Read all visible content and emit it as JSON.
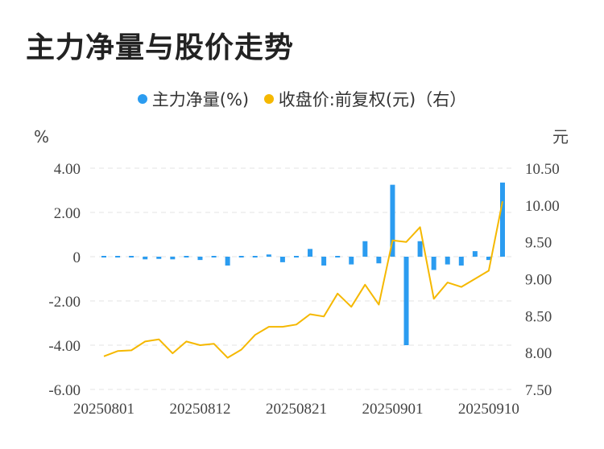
{
  "title": "主力净量与股价走势",
  "legend": {
    "items": [
      {
        "label": "主力净量(%)",
        "color": "#2b9cf0"
      },
      {
        "label": "收盘价:前复权(元)（右）",
        "color": "#f5b800"
      }
    ]
  },
  "chart_data": {
    "type": "bar+line",
    "title": "主力净量与股价走势",
    "left_axis": {
      "unit": "%",
      "min": -6,
      "max": 4,
      "ticks": [
        "4.00",
        "2.00",
        "0",
        "-2.00",
        "-4.00",
        "-6.00"
      ]
    },
    "right_axis": {
      "unit": "元",
      "min": 7.5,
      "max": 10.5,
      "ticks": [
        "10.50",
        "10.00",
        "9.50",
        "9.00",
        "8.50",
        "8.00",
        "7.50"
      ]
    },
    "x_tick_labels": [
      "20250801",
      "20250812",
      "20250821",
      "20250901",
      "20250910"
    ],
    "x_tick_indices": [
      0,
      7,
      14,
      21,
      28
    ],
    "grid": "horizontal dashed",
    "legend_position": "top-center",
    "series": [
      {
        "name": "主力净量(%)",
        "type": "bar",
        "axis": "left",
        "color": "#2b9cf0",
        "values": [
          0.05,
          -0.05,
          -0.03,
          -0.12,
          -0.1,
          -0.12,
          0.0,
          -0.15,
          0.05,
          -0.4,
          0.05,
          -0.05,
          0.1,
          -0.25,
          -0.05,
          0.35,
          -0.4,
          -0.05,
          -0.35,
          0.7,
          -0.3,
          3.25,
          -4.0,
          0.7,
          -0.6,
          -0.35,
          -0.4,
          0.25,
          -0.15,
          3.35
        ]
      },
      {
        "name": "收盘价:前复权(元)（右）",
        "type": "line",
        "axis": "right",
        "color": "#f5b800",
        "values": [
          7.95,
          8.02,
          8.03,
          8.15,
          8.18,
          7.99,
          8.15,
          8.1,
          8.12,
          7.93,
          8.04,
          8.24,
          8.35,
          8.35,
          8.38,
          8.52,
          8.49,
          8.8,
          8.62,
          8.92,
          8.65,
          9.52,
          9.5,
          9.7,
          8.73,
          8.95,
          8.89,
          9.0,
          9.11,
          10.05
        ]
      }
    ]
  }
}
